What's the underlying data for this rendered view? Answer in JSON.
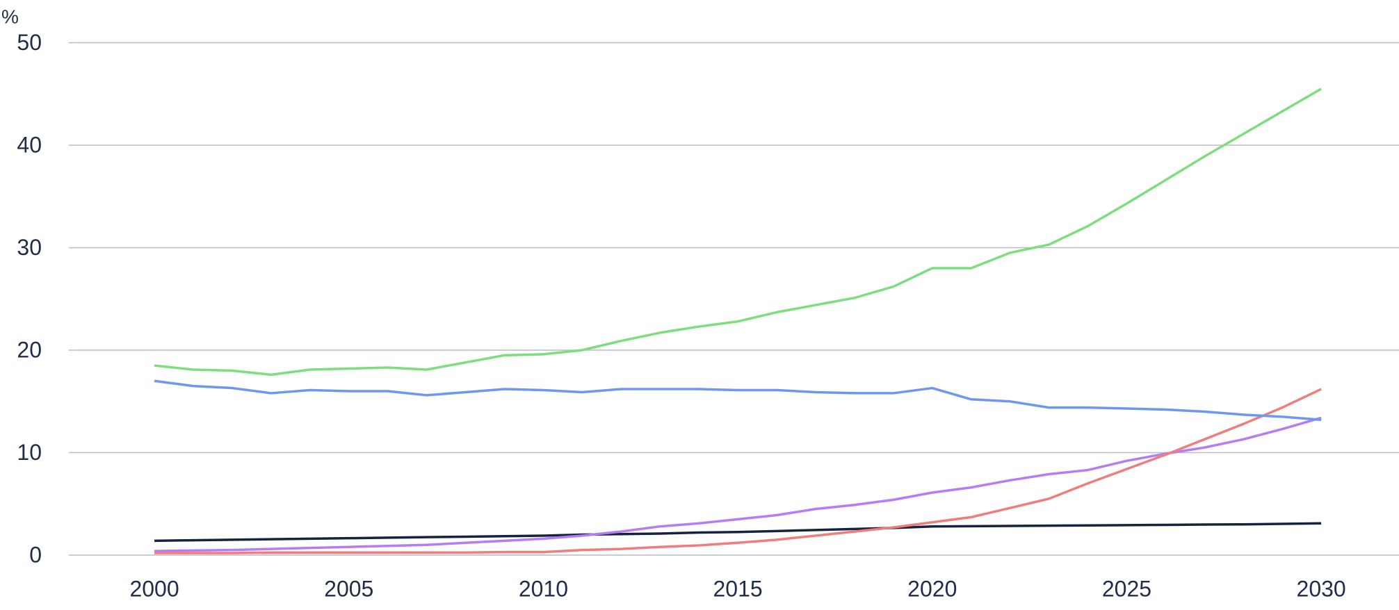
{
  "chart_data": {
    "type": "line",
    "y_label": "%",
    "x": [
      2000,
      2001,
      2002,
      2003,
      2004,
      2005,
      2006,
      2007,
      2008,
      2009,
      2010,
      2011,
      2012,
      2013,
      2014,
      2015,
      2016,
      2017,
      2018,
      2019,
      2020,
      2021,
      2022,
      2023,
      2024,
      2025,
      2026,
      2027,
      2028,
      2029,
      2030
    ],
    "series": [
      {
        "color": "#16233f",
        "values": [
          1.4,
          1.45,
          1.5,
          1.55,
          1.6,
          1.65,
          1.7,
          1.75,
          1.8,
          1.85,
          1.9,
          2.0,
          2.05,
          2.1,
          2.2,
          2.25,
          2.35,
          2.45,
          2.55,
          2.65,
          2.8,
          2.82,
          2.85,
          2.87,
          2.9,
          2.92,
          2.95,
          2.98,
          3.0,
          3.05,
          3.1
        ]
      },
      {
        "color": "#b57cf5",
        "values": [
          0.4,
          0.45,
          0.5,
          0.6,
          0.7,
          0.8,
          0.9,
          1.0,
          1.2,
          1.4,
          1.6,
          1.9,
          2.3,
          2.8,
          3.1,
          3.5,
          3.9,
          4.5,
          4.9,
          5.4,
          6.1,
          6.6,
          7.3,
          7.9,
          8.3,
          9.2,
          9.9,
          10.5,
          11.3,
          12.3,
          13.4
        ]
      },
      {
        "color": "#f07d7d",
        "values": [
          0.2,
          0.2,
          0.2,
          0.25,
          0.25,
          0.25,
          0.25,
          0.25,
          0.25,
          0.3,
          0.3,
          0.5,
          0.6,
          0.8,
          0.95,
          1.2,
          1.5,
          1.9,
          2.3,
          2.7,
          3.2,
          3.7,
          4.6,
          5.5,
          7.0,
          8.4,
          9.8,
          11.3,
          12.8,
          14.4,
          16.2
        ]
      },
      {
        "color": "#6f97f2",
        "values": [
          17.0,
          16.5,
          16.3,
          15.8,
          16.1,
          16.0,
          16.0,
          15.6,
          15.9,
          16.2,
          16.1,
          15.9,
          16.2,
          16.2,
          16.2,
          16.1,
          16.1,
          15.9,
          15.8,
          15.8,
          16.3,
          15.2,
          15.0,
          14.4,
          14.4,
          14.3,
          14.2,
          14.0,
          13.7,
          13.5,
          13.2
        ]
      },
      {
        "color": "#7cde7c",
        "values": [
          18.5,
          18.1,
          18.0,
          17.6,
          18.1,
          18.2,
          18.3,
          18.1,
          18.8,
          19.5,
          19.6,
          20.0,
          20.9,
          21.7,
          22.3,
          22.8,
          23.7,
          24.4,
          25.1,
          26.2,
          28.0,
          28.0,
          29.5,
          30.3,
          32.1,
          34.3,
          36.6,
          38.9,
          41.1,
          43.3,
          45.5
        ]
      }
    ],
    "xlim": [
      1997.8,
      2032
    ],
    "xticks": [
      2000,
      2005,
      2010,
      2015,
      2020,
      2025,
      2030
    ],
    "ylim": [
      0,
      52.2
    ],
    "yticks": [
      0,
      10,
      20,
      30,
      40,
      50
    ],
    "grid": true
  }
}
